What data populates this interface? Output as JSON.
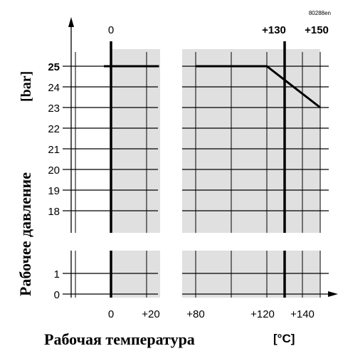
{
  "chart_data": {
    "type": "line",
    "doc_code": "80288en",
    "xlabel": "Рабочая температура",
    "xunit": "[°C]",
    "ylabel": "Рабочее давление",
    "yunit": "[bar]",
    "x_tick_labels": [
      "0",
      "+20",
      "+80",
      "+120",
      "+140"
    ],
    "top_labels": [
      "0",
      "+130",
      "+150"
    ],
    "upper_y_ticks": [
      "25",
      "24",
      "23",
      "22",
      "21",
      "20",
      "19",
      "18"
    ],
    "lower_y_ticks": [
      "1",
      "0"
    ],
    "x_range_left_panel": [
      -20,
      30
    ],
    "x_range_right_panel": [
      80,
      155
    ],
    "upper_y_range": [
      17,
      26.5
    ],
    "lower_y_range": [
      -0.5,
      2
    ],
    "series": [
      {
        "x": [
          80,
          120,
          150
        ],
        "y": [
          25,
          25,
          23
        ]
      },
      {
        "x": [
          -4,
          27
        ],
        "y": [
          25,
          25
        ]
      }
    ],
    "shaded_regions": [
      {
        "x": [
          0,
          30
        ]
      },
      {
        "x": [
          80,
          155
        ]
      }
    ],
    "vertical_markers": [
      0,
      130
    ],
    "grid": true
  }
}
